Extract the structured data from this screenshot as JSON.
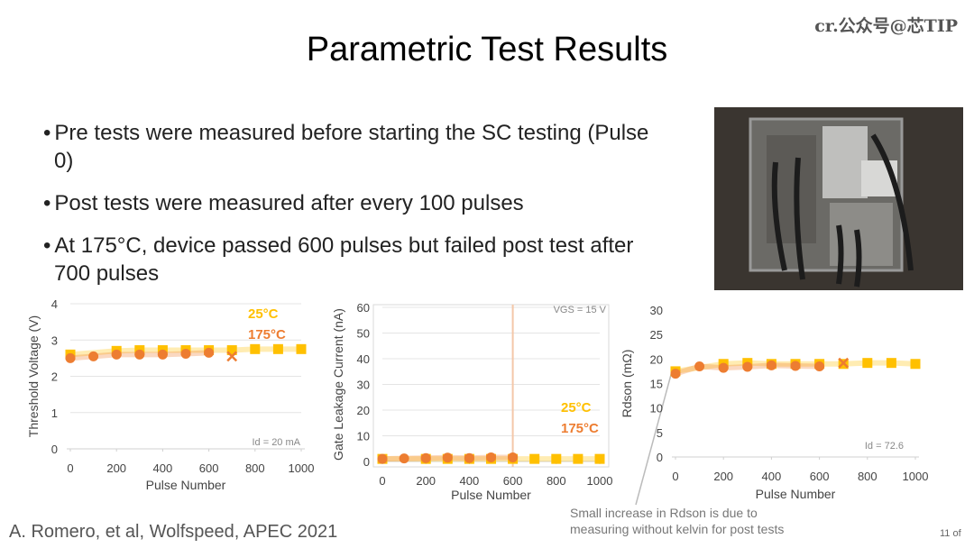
{
  "title": "Parametric Test Results",
  "watermark": "cr.公众号@芯TIP",
  "bullets": [
    "Pre tests were measured before starting the SC testing (Pulse 0)",
    "Post tests were measured after every 100 pulses",
    "At 175°C, device passed 600 pulses but failed post test after 700 pulses"
  ],
  "footer": "A. Romero, et al, Wolfspeed, APEC 2021",
  "page": "11 of",
  "callout": [
    "Small increase in Rdson is due to",
    "measuring without kelvin for post tests"
  ],
  "chart_data": [
    {
      "type": "scatter",
      "x_label": "Pulse Number",
      "y_label": "Threshold Voltage (V)",
      "annotation": "Id = 20 mA",
      "xlim": [
        0,
        1000
      ],
      "xticks": [
        0,
        200,
        400,
        600,
        800,
        1000
      ],
      "ylim": [
        0,
        4
      ],
      "yticks": [
        0,
        1,
        2,
        3,
        4
      ],
      "grid": true,
      "series": [
        {
          "name": "25°C",
          "color": "#FFC000",
          "marker": "square",
          "x": [
            0,
            200,
            300,
            400,
            500,
            600,
            700,
            800,
            900,
            1000
          ],
          "values": [
            2.6,
            2.7,
            2.72,
            2.72,
            2.72,
            2.72,
            2.72,
            2.75,
            2.75,
            2.75
          ]
        },
        {
          "name": "175°C",
          "color": "#ED7D31",
          "marker": "circle",
          "x": [
            0,
            100,
            200,
            300,
            400,
            500,
            600
          ],
          "values": [
            2.5,
            2.55,
            2.6,
            2.6,
            2.6,
            2.62,
            2.65
          ]
        }
      ],
      "fail_point": {
        "x": 700,
        "y": 2.55
      }
    },
    {
      "type": "scatter",
      "x_label": "Pulse Number",
      "y_label": "Gate Leakage Current (nA)",
      "annotation": "VGS = 15 V",
      "xlim": [
        0,
        1000
      ],
      "xticks": [
        0,
        200,
        400,
        600,
        800,
        1000
      ],
      "ylim": [
        0,
        60
      ],
      "yticks": [
        0,
        10,
        20,
        30,
        40,
        50,
        60
      ],
      "grid": true,
      "vline": 600,
      "series": [
        {
          "name": "25°C",
          "color": "#FFC000",
          "marker": "square",
          "x": [
            0,
            200,
            300,
            400,
            500,
            600,
            700,
            800,
            900,
            1000
          ],
          "values": [
            1,
            1,
            1,
            1,
            1,
            1,
            1,
            1,
            1,
            1
          ]
        },
        {
          "name": "175°C",
          "color": "#ED7D31",
          "marker": "circle",
          "x": [
            0,
            100,
            200,
            300,
            400,
            500,
            600
          ],
          "values": [
            1,
            1.2,
            1.3,
            1.5,
            1.3,
            1.6,
            1.6
          ]
        }
      ]
    },
    {
      "type": "scatter",
      "x_label": "Pulse Number",
      "y_label": "Rdson (mΩ)",
      "annotation": "Id = 72.6",
      "xlim": [
        0,
        1000
      ],
      "xticks": [
        0,
        200,
        400,
        600,
        800,
        1000
      ],
      "ylim": [
        0,
        30
      ],
      "yticks": [
        0,
        5,
        10,
        15,
        20,
        25,
        30
      ],
      "grid": false,
      "series": [
        {
          "color": "#FFC000",
          "marker": "square",
          "x": [
            0,
            200,
            300,
            400,
            500,
            600,
            700,
            800,
            900,
            1000
          ],
          "values": [
            17.5,
            19,
            19.2,
            19,
            19,
            19,
            19,
            19.2,
            19.2,
            19
          ]
        },
        {
          "color": "#ED7D31",
          "marker": "circle",
          "x": [
            0,
            100,
            200,
            300,
            400,
            500,
            600
          ],
          "values": [
            17,
            18.5,
            18.2,
            18.4,
            18.7,
            18.6,
            18.5
          ]
        }
      ],
      "fail_point": {
        "x": 700,
        "y": 19.2
      }
    }
  ]
}
